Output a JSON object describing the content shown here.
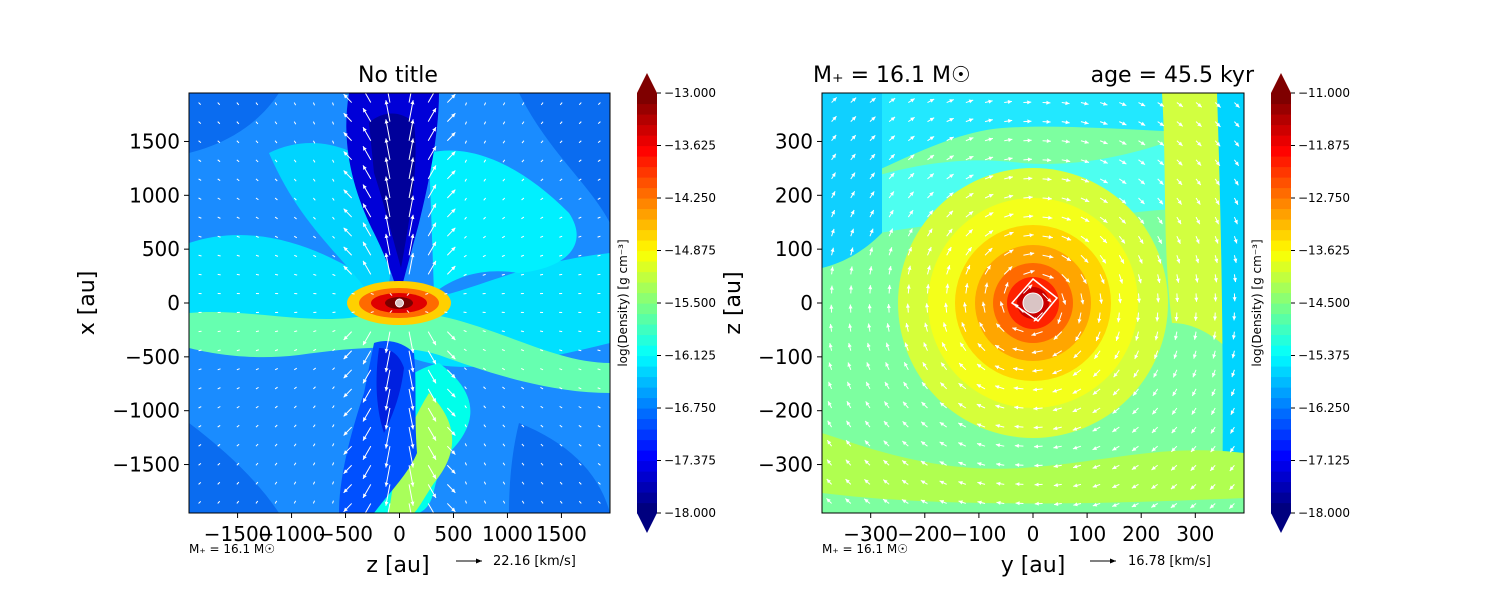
{
  "colors": {
    "arrow": "#ffffff",
    "jet": [
      "#00007f",
      "#0000ff",
      "#007fff",
      "#00ffff",
      "#7fff7f",
      "#ffff00",
      "#ff7f00",
      "#ff0000",
      "#7f0000"
    ],
    "sink": "#d9c4c4"
  },
  "chart_data": [
    {
      "type": "heatmap",
      "title": "No title",
      "xlabel": "z [au]",
      "ylabel": "x [au]",
      "xlim": [
        -1950,
        1950
      ],
      "ylim": [
        -1950,
        1950
      ],
      "xticks": [
        {
          "v": -1500,
          "label": "−1500"
        },
        {
          "v": -1000,
          "label": "−1000"
        },
        {
          "v": -500,
          "label": "−500"
        },
        {
          "v": 0,
          "label": "0"
        },
        {
          "v": 500,
          "label": "500"
        },
        {
          "v": 1000,
          "label": "1000"
        },
        {
          "v": 1500,
          "label": "1500"
        }
      ],
      "yticks": [
        {
          "v": 1500,
          "label": "1500"
        },
        {
          "v": 1000,
          "label": "1000"
        },
        {
          "v": 500,
          "label": "500"
        },
        {
          "v": 0,
          "label": "0"
        },
        {
          "v": -500,
          "label": "−500"
        },
        {
          "v": -1000,
          "label": "−1000"
        },
        {
          "v": -1500,
          "label": "−1500"
        }
      ],
      "background_level": -16.9,
      "colorbar": {
        "label": "log(Density) [g cm⁻³]",
        "min": -18.0,
        "max": -13.0,
        "ticks": [
          "−13.000",
          "−13.625",
          "−14.250",
          "−14.875",
          "−15.500",
          "−16.125",
          "−16.750",
          "−17.375",
          "−18.000"
        ]
      },
      "footnote": "M₊ = 16.1 M☉",
      "quiver_key": "22.16 [km/s]",
      "sink": {
        "x": 0,
        "y": 0,
        "r": 35
      }
    },
    {
      "type": "heatmap",
      "title_left": "M₊ = 16.1 M☉",
      "title_right": "age = 45.5 kyr",
      "xlabel": "y [au]",
      "ylabel": "z [au]",
      "xlim": [
        -390,
        390
      ],
      "ylim": [
        -390,
        390
      ],
      "xticks": [
        {
          "v": -300,
          "label": "−300"
        },
        {
          "v": -200,
          "label": "−200"
        },
        {
          "v": -100,
          "label": "−100"
        },
        {
          "v": 0,
          "label": "0"
        },
        {
          "v": 100,
          "label": "100"
        },
        {
          "v": 200,
          "label": "200"
        },
        {
          "v": 300,
          "label": "300"
        }
      ],
      "yticks": [
        {
          "v": 300,
          "label": "300"
        },
        {
          "v": 200,
          "label": "200"
        },
        {
          "v": 100,
          "label": "100"
        },
        {
          "v": 0,
          "label": "0"
        },
        {
          "v": -100,
          "label": "−100"
        },
        {
          "v": -200,
          "label": "−200"
        },
        {
          "v": -300,
          "label": "−300"
        }
      ],
      "background_level": -14.6,
      "colorbar": {
        "label": "log(Density) [g cm⁻³]",
        "min": -18.0,
        "max": -11.0,
        "ticks": [
          "−11.000",
          "−11.875",
          "−12.750",
          "−13.625",
          "−14.500",
          "−15.375",
          "−16.250",
          "−17.125",
          "−18.000"
        ]
      },
      "footnote": "M₊ = 16.1 M☉",
      "quiver_key": "16.78 [km/s]",
      "sink": {
        "x": 0,
        "y": 0,
        "r": 18
      }
    }
  ]
}
